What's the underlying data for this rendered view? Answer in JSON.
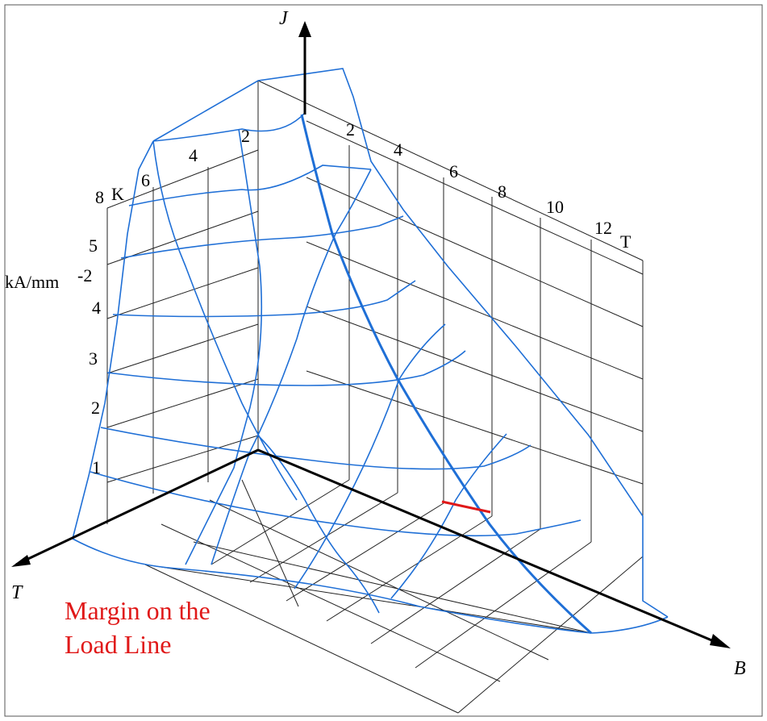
{
  "axes": {
    "j_label": "J",
    "t_label": "T",
    "b_label": "B",
    "j_unit": "kA/mm",
    "j_unit_exp": "-2",
    "t_unit": "K",
    "b_unit": "T"
  },
  "ticks": {
    "temperature": [
      "8",
      "6",
      "4",
      "2"
    ],
    "field": [
      "2",
      "4",
      "6",
      "8",
      "10",
      "12"
    ],
    "current": [
      "5",
      "4",
      "3",
      "2",
      "1"
    ]
  },
  "annotation": {
    "line1": "Margin on the",
    "line2": "Load Line"
  },
  "colors": {
    "surface": "#1f6fd6",
    "margin": "#e01818",
    "axes": "#000000",
    "grid": "#222222"
  }
}
